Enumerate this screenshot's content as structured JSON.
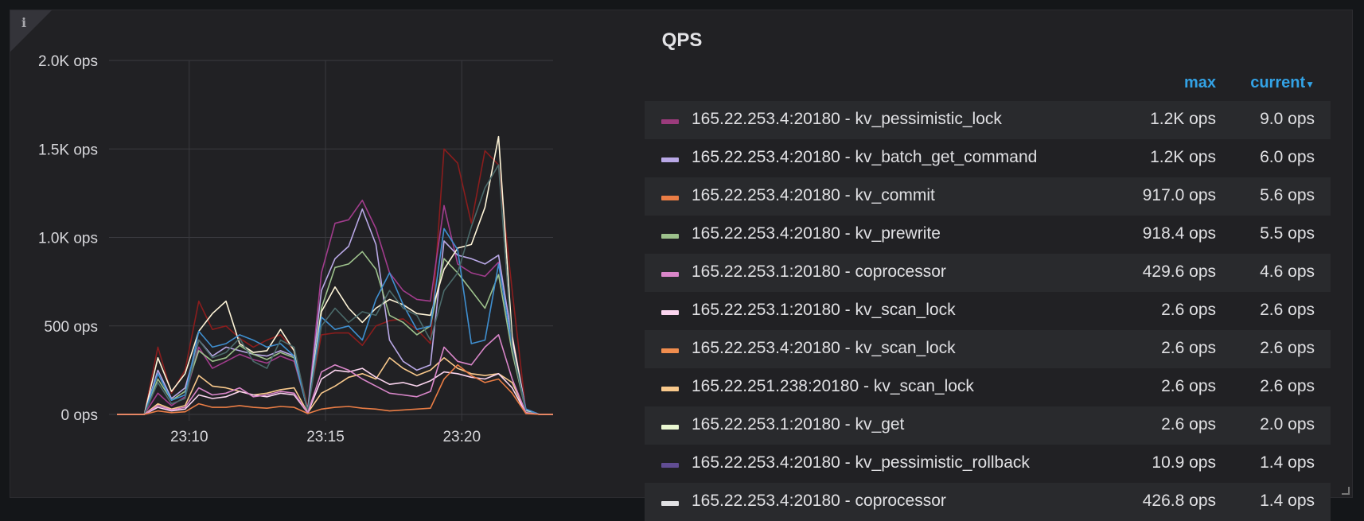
{
  "panel": {
    "title": "QPS",
    "info": "i"
  },
  "legend_header": {
    "max": "max",
    "current": "current"
  },
  "legend": [
    {
      "name": "165.22.253.4:20180 - kv_pessimistic_lock",
      "max": "1.2K ops",
      "current": "9.0 ops",
      "color": "#9b3b7c"
    },
    {
      "name": "165.22.253.4:20180 - kv_batch_get_command",
      "max": "1.2K ops",
      "current": "6.0 ops",
      "color": "#b9a8e6"
    },
    {
      "name": "165.22.253.4:20180 - kv_commit",
      "max": "917.0 ops",
      "current": "5.6 ops",
      "color": "#ea7d45"
    },
    {
      "name": "165.22.253.4:20180 - kv_prewrite",
      "max": "918.4 ops",
      "current": "5.5 ops",
      "color": "#9dc18c"
    },
    {
      "name": "165.22.253.1:20180 - coprocessor",
      "max": "429.6 ops",
      "current": "4.6 ops",
      "color": "#d986c9"
    },
    {
      "name": "165.22.253.1:20180 - kv_scan_lock",
      "max": "2.6 ops",
      "current": "2.6 ops",
      "color": "#fbd5ef"
    },
    {
      "name": "165.22.253.4:20180 - kv_scan_lock",
      "max": "2.6 ops",
      "current": "2.6 ops",
      "color": "#f08d4e"
    },
    {
      "name": "165.22.251.238:20180 - kv_scan_lock",
      "max": "2.6 ops",
      "current": "2.6 ops",
      "color": "#f9c98c"
    },
    {
      "name": "165.22.253.1:20180 - kv_get",
      "max": "2.6 ops",
      "current": "2.0 ops",
      "color": "#eaf8d2"
    },
    {
      "name": "165.22.253.4:20180 - kv_pessimistic_rollback",
      "max": "10.9 ops",
      "current": "1.4 ops",
      "color": "#614d93"
    },
    {
      "name": "165.22.253.4:20180 - coprocessor",
      "max": "426.8 ops",
      "current": "1.4 ops",
      "color": "#e0e0e3"
    }
  ],
  "chart_data": {
    "type": "line",
    "yticks": [
      "2.0K ops",
      "1.5K ops",
      "1.0K ops",
      "500 ops",
      "0 ops"
    ],
    "ylim": [
      0,
      2000
    ],
    "xticks": [
      "23:10",
      "23:15",
      "23:20"
    ],
    "xlim": [
      0,
      32
    ],
    "grid": true,
    "series": [
      {
        "color": "#8a1d1d",
        "values": [
          0,
          0,
          0,
          380,
          120,
          250,
          640,
          480,
          500,
          430,
          380,
          420,
          450,
          360,
          40,
          450,
          460,
          460,
          390,
          500,
          530,
          540,
          480,
          400,
          1500,
          1420,
          1080,
          1490,
          1410,
          700,
          20,
          0,
          0
        ]
      },
      {
        "color": "#a13c8c",
        "values": [
          0,
          0,
          0,
          120,
          50,
          100,
          380,
          260,
          300,
          340,
          310,
          290,
          330,
          300,
          30,
          800,
          1080,
          1100,
          1210,
          1050,
          800,
          700,
          650,
          640,
          1180,
          850,
          800,
          780,
          860,
          450,
          30,
          0,
          0
        ]
      },
      {
        "color": "#b9a8e6",
        "values": [
          0,
          0,
          0,
          250,
          90,
          150,
          420,
          330,
          380,
          360,
          340,
          330,
          360,
          330,
          25,
          700,
          880,
          950,
          1160,
          960,
          420,
          300,
          250,
          280,
          980,
          900,
          880,
          850,
          900,
          420,
          25,
          0,
          0
        ]
      },
      {
        "color": "#9dc18c",
        "values": [
          0,
          0,
          0,
          200,
          80,
          130,
          360,
          300,
          320,
          390,
          340,
          310,
          350,
          320,
          22,
          600,
          830,
          850,
          920,
          820,
          560,
          520,
          450,
          500,
          880,
          800,
          700,
          600,
          790,
          350,
          20,
          0,
          0
        ]
      },
      {
        "color": "#fff5d8",
        "values": [
          0,
          0,
          0,
          320,
          130,
          230,
          470,
          570,
          640,
          400,
          350,
          360,
          480,
          360,
          15,
          580,
          720,
          600,
          520,
          600,
          650,
          620,
          570,
          560,
          820,
          940,
          960,
          1170,
          1570,
          440,
          20,
          0,
          0
        ]
      },
      {
        "color": "#3f8fd0",
        "values": [
          0,
          0,
          0,
          230,
          80,
          110,
          470,
          380,
          400,
          450,
          420,
          380,
          400,
          330,
          20,
          550,
          480,
          500,
          420,
          650,
          800,
          620,
          480,
          500,
          1050,
          930,
          400,
          420,
          850,
          380,
          30,
          0,
          0
        ]
      },
      {
        "color": "#4b6b6b",
        "values": [
          0,
          0,
          0,
          180,
          60,
          90,
          420,
          320,
          350,
          430,
          300,
          260,
          420,
          380,
          18,
          500,
          600,
          520,
          580,
          560,
          700,
          600,
          560,
          420,
          700,
          800,
          1060,
          1280,
          1410,
          380,
          15,
          0,
          0
        ]
      },
      {
        "color": "#f9c98c",
        "values": [
          0,
          0,
          0,
          60,
          30,
          50,
          220,
          160,
          150,
          130,
          110,
          120,
          140,
          150,
          10,
          120,
          160,
          210,
          230,
          200,
          320,
          260,
          220,
          250,
          320,
          260,
          230,
          220,
          230,
          180,
          10,
          0,
          0
        ]
      },
      {
        "color": "#fbd5ef",
        "values": [
          0,
          0,
          0,
          40,
          20,
          30,
          110,
          90,
          100,
          130,
          110,
          100,
          120,
          110,
          8,
          200,
          250,
          240,
          260,
          210,
          170,
          180,
          160,
          190,
          240,
          230,
          210,
          200,
          230,
          150,
          8,
          0,
          0
        ]
      },
      {
        "color": "#d986c9",
        "values": [
          0,
          0,
          0,
          50,
          25,
          40,
          150,
          110,
          120,
          150,
          100,
          110,
          130,
          120,
          10,
          240,
          280,
          250,
          200,
          160,
          120,
          110,
          100,
          130,
          380,
          300,
          280,
          380,
          450,
          200,
          10,
          0,
          0
        ]
      },
      {
        "color": "#ea7d45",
        "values": [
          0,
          0,
          0,
          20,
          10,
          15,
          60,
          40,
          40,
          50,
          40,
          35,
          45,
          40,
          5,
          30,
          40,
          45,
          35,
          30,
          20,
          25,
          30,
          35,
          200,
          280,
          220,
          180,
          200,
          120,
          5,
          0,
          0
        ]
      }
    ]
  }
}
